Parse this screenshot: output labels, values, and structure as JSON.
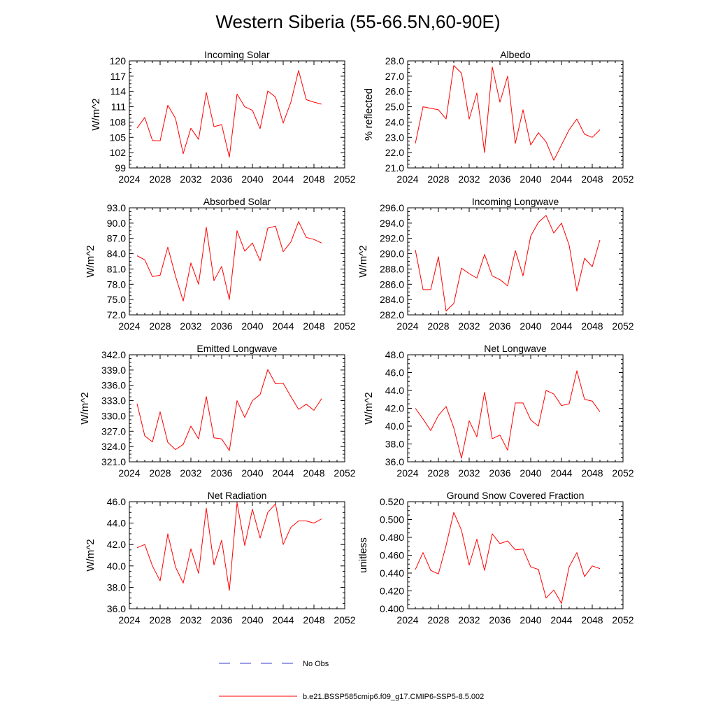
{
  "title": "Western Siberia (55-66.5N,60-90E)",
  "legend": [
    {
      "label": "No Obs",
      "color": "#3b3bcc",
      "dash": true
    },
    {
      "label": "b.e21.BSSP585cmip6.f09_g17.CMIP6-SSP5-8.5.002",
      "color": "#ff0000",
      "dash": false
    }
  ],
  "chart_data": [
    {
      "type": "line",
      "title": "Incoming Solar",
      "ylabel": "W/m^2",
      "xlim": [
        2024,
        2052
      ],
      "xticks": [
        "2024",
        "2028",
        "2032",
        "2036",
        "2040",
        "2044",
        "2048",
        "2052"
      ],
      "ylim": [
        99,
        120
      ],
      "yticks": [
        "99",
        "102",
        "105",
        "108",
        "111",
        "114",
        "117",
        "120"
      ],
      "series": [
        {
          "color": "#ff0000",
          "x": [
            2025,
            2026,
            2027,
            2028,
            2029,
            2030,
            2031,
            2032,
            2033,
            2034,
            2035,
            2036,
            2037,
            2038,
            2039,
            2040,
            2041,
            2042,
            2043,
            2044,
            2045,
            2046,
            2047,
            2048,
            2049
          ],
          "values": [
            106.8,
            108.9,
            104.4,
            104.3,
            111.3,
            108.7,
            101.8,
            106.8,
            104.6,
            113.8,
            107.1,
            107.5,
            101.1,
            113.5,
            111.0,
            110.3,
            106.7,
            114.1,
            112.9,
            107.8,
            111.9,
            118.1,
            112.4,
            111.9,
            111.5
          ]
        }
      ]
    },
    {
      "type": "line",
      "title": "Albedo",
      "ylabel": "% reflected",
      "xlim": [
        2024,
        2052
      ],
      "xticks": [
        "2024",
        "2028",
        "2032",
        "2036",
        "2040",
        "2044",
        "2048",
        "2052"
      ],
      "ylim": [
        21.0,
        28.0
      ],
      "yticks": [
        "21.0",
        "22.0",
        "23.0",
        "24.0",
        "25.0",
        "26.0",
        "27.0",
        "28.0"
      ],
      "series": [
        {
          "color": "#ff0000",
          "x": [
            2025,
            2026,
            2027,
            2028,
            2029,
            2030,
            2031,
            2032,
            2033,
            2034,
            2035,
            2036,
            2037,
            2038,
            2039,
            2040,
            2041,
            2042,
            2043,
            2044,
            2045,
            2046,
            2047,
            2048,
            2049
          ],
          "values": [
            22.6,
            25.0,
            24.9,
            24.8,
            24.2,
            27.7,
            27.2,
            24.2,
            25.9,
            22.0,
            27.6,
            25.3,
            27.0,
            22.6,
            24.8,
            22.5,
            23.3,
            22.7,
            21.5,
            22.5,
            23.5,
            24.2,
            23.2,
            23.0,
            23.5
          ]
        }
      ]
    },
    {
      "type": "line",
      "title": "Absorbed Solar",
      "ylabel": "W/m^2",
      "xlim": [
        2024,
        2052
      ],
      "xticks": [
        "2024",
        "2028",
        "2032",
        "2036",
        "2040",
        "2044",
        "2048",
        "2052"
      ],
      "ylim": [
        72.0,
        93.0
      ],
      "yticks": [
        "72.0",
        "75.0",
        "78.0",
        "81.0",
        "84.0",
        "87.0",
        "90.0",
        "93.0"
      ],
      "series": [
        {
          "color": "#ff0000",
          "x": [
            2025,
            2026,
            2027,
            2028,
            2029,
            2030,
            2031,
            2032,
            2033,
            2034,
            2035,
            2036,
            2037,
            2038,
            2039,
            2040,
            2041,
            2042,
            2043,
            2044,
            2045,
            2046,
            2047,
            2048,
            2049
          ],
          "values": [
            83.6,
            82.8,
            79.5,
            79.8,
            85.3,
            79.6,
            74.7,
            82.2,
            78.0,
            89.2,
            78.7,
            81.5,
            75.0,
            88.5,
            84.5,
            86.1,
            82.6,
            89.0,
            89.4,
            84.4,
            86.3,
            90.3,
            87.2,
            86.8,
            86.1
          ]
        }
      ]
    },
    {
      "type": "line",
      "title": "Incoming Longwave",
      "ylabel": "W/m^2",
      "xlim": [
        2024,
        2052
      ],
      "xticks": [
        "2024",
        "2028",
        "2032",
        "2036",
        "2040",
        "2044",
        "2048",
        "2052"
      ],
      "ylim": [
        282.0,
        296.0
      ],
      "yticks": [
        "282.0",
        "284.0",
        "286.0",
        "288.0",
        "290.0",
        "292.0",
        "294.0",
        "296.0"
      ],
      "series": [
        {
          "color": "#ff0000",
          "x": [
            2025,
            2026,
            2027,
            2028,
            2029,
            2030,
            2031,
            2032,
            2033,
            2034,
            2035,
            2036,
            2037,
            2038,
            2039,
            2040,
            2041,
            2042,
            2043,
            2044,
            2045,
            2046,
            2047,
            2048,
            2049
          ],
          "values": [
            290.5,
            285.3,
            285.3,
            289.6,
            282.5,
            283.5,
            288.1,
            287.4,
            286.8,
            289.9,
            287.1,
            286.6,
            285.8,
            290.4,
            287.1,
            292.3,
            294.1,
            295.0,
            292.7,
            294.0,
            291.1,
            285.1,
            289.4,
            288.3,
            291.8
          ]
        }
      ]
    },
    {
      "type": "line",
      "title": "Emitted Longwave",
      "ylabel": "W/m^2",
      "xlim": [
        2024,
        2052
      ],
      "xticks": [
        "2024",
        "2028",
        "2032",
        "2036",
        "2040",
        "2044",
        "2048",
        "2052"
      ],
      "ylim": [
        321.0,
        342.0
      ],
      "yticks": [
        "321.0",
        "324.0",
        "327.0",
        "330.0",
        "333.0",
        "336.0",
        "339.0",
        "342.0"
      ],
      "series": [
        {
          "color": "#ff0000",
          "x": [
            2025,
            2026,
            2027,
            2028,
            2029,
            2030,
            2031,
            2032,
            2033,
            2034,
            2035,
            2036,
            2037,
            2038,
            2039,
            2040,
            2041,
            2042,
            2043,
            2044,
            2045,
            2046,
            2047,
            2048,
            2049
          ],
          "values": [
            332.4,
            326.1,
            324.9,
            330.8,
            324.8,
            323.4,
            324.4,
            328.0,
            325.5,
            333.8,
            325.7,
            325.5,
            323.2,
            333.0,
            329.7,
            333.0,
            334.2,
            339.1,
            336.3,
            336.4,
            333.8,
            331.3,
            332.3,
            331.1,
            333.4
          ]
        }
      ]
    },
    {
      "type": "line",
      "title": "Net Longwave",
      "ylabel": "W/m^2",
      "xlim": [
        2024,
        2052
      ],
      "xticks": [
        "2024",
        "2028",
        "2032",
        "2036",
        "2040",
        "2044",
        "2048",
        "2052"
      ],
      "ylim": [
        36.0,
        48.0
      ],
      "yticks": [
        "36.0",
        "38.0",
        "40.0",
        "42.0",
        "44.0",
        "46.0",
        "48.0"
      ],
      "series": [
        {
          "color": "#ff0000",
          "x": [
            2025,
            2026,
            2027,
            2028,
            2029,
            2030,
            2031,
            2032,
            2033,
            2034,
            2035,
            2036,
            2037,
            2038,
            2039,
            2040,
            2041,
            2042,
            2043,
            2044,
            2045,
            2046,
            2047,
            2048,
            2049
          ],
          "values": [
            42.0,
            40.8,
            39.5,
            41.2,
            42.2,
            39.8,
            36.4,
            40.6,
            38.8,
            43.8,
            38.6,
            39.0,
            37.3,
            42.6,
            42.6,
            40.7,
            40.0,
            44.0,
            43.6,
            42.3,
            42.5,
            46.2,
            43.0,
            42.8,
            41.6
          ]
        }
      ]
    },
    {
      "type": "line",
      "title": "Net Radiation",
      "ylabel": "W/m^2",
      "xlim": [
        2024,
        2052
      ],
      "xticks": [
        "2024",
        "2028",
        "2032",
        "2036",
        "2040",
        "2044",
        "2048",
        "2052"
      ],
      "ylim": [
        36.0,
        46.0
      ],
      "yticks": [
        "36.0",
        "38.0",
        "40.0",
        "42.0",
        "44.0",
        "46.0"
      ],
      "series": [
        {
          "color": "#ff0000",
          "x": [
            2025,
            2026,
            2027,
            2028,
            2029,
            2030,
            2031,
            2032,
            2033,
            2034,
            2035,
            2036,
            2037,
            2038,
            2039,
            2040,
            2041,
            2042,
            2043,
            2044,
            2045,
            2046,
            2047,
            2048,
            2049
          ],
          "values": [
            41.7,
            42.0,
            40.0,
            38.6,
            43.0,
            39.9,
            38.4,
            41.6,
            39.3,
            45.4,
            40.1,
            42.4,
            37.7,
            45.9,
            41.9,
            45.3,
            42.6,
            45.0,
            45.8,
            42.0,
            43.6,
            44.2,
            44.2,
            44.0,
            44.4
          ]
        }
      ]
    },
    {
      "type": "line",
      "title": "Ground Snow Covered Fraction",
      "ylabel": "unitless",
      "xlim": [
        2024,
        2052
      ],
      "xticks": [
        "2024",
        "2028",
        "2032",
        "2036",
        "2040",
        "2044",
        "2048",
        "2052"
      ],
      "ylim": [
        0.4,
        0.52
      ],
      "yticks": [
        "0.400",
        "0.420",
        "0.440",
        "0.460",
        "0.480",
        "0.500",
        "0.520"
      ],
      "series": [
        {
          "color": "#ff0000",
          "x": [
            2025,
            2026,
            2027,
            2028,
            2029,
            2030,
            2031,
            2032,
            2033,
            2034,
            2035,
            2036,
            2037,
            2038,
            2039,
            2040,
            2041,
            2042,
            2043,
            2044,
            2045,
            2046,
            2047,
            2048,
            2049
          ],
          "values": [
            0.444,
            0.463,
            0.443,
            0.439,
            0.471,
            0.508,
            0.488,
            0.449,
            0.478,
            0.443,
            0.484,
            0.473,
            0.476,
            0.466,
            0.467,
            0.447,
            0.444,
            0.412,
            0.421,
            0.406,
            0.447,
            0.463,
            0.436,
            0.448,
            0.445
          ]
        }
      ]
    }
  ]
}
